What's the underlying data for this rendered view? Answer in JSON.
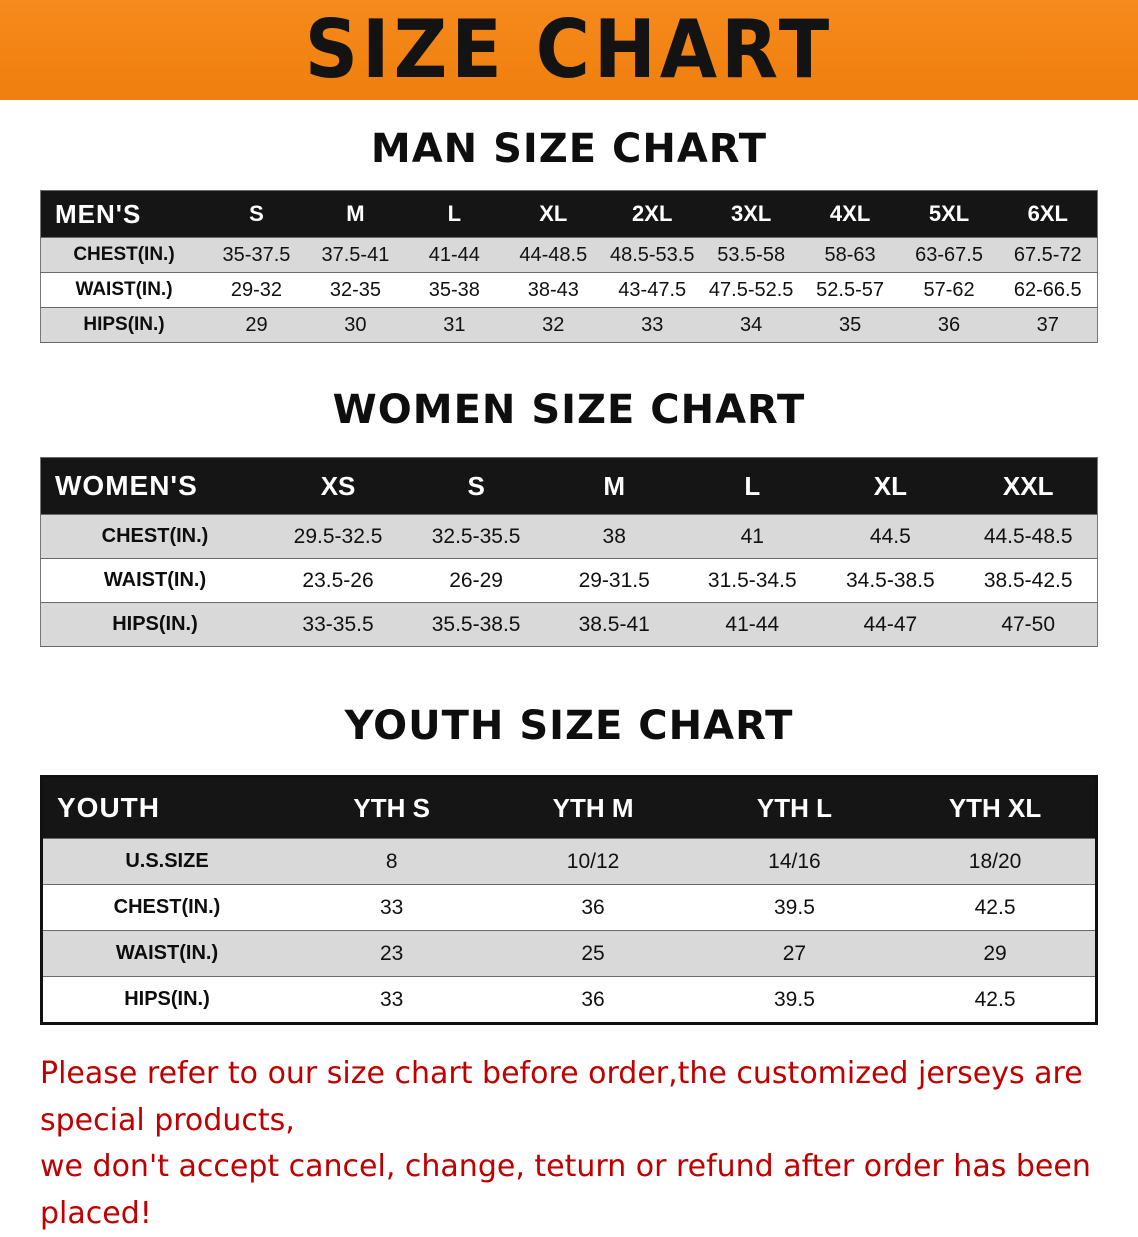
{
  "banner": {
    "title": "SIZE CHART"
  },
  "sections": [
    {
      "title": "MAN SIZE CHART",
      "header": [
        "MEN'S",
        "S",
        "M",
        "L",
        "XL",
        "2XL",
        "3XL",
        "4XL",
        "5XL",
        "6XL"
      ],
      "rows": [
        {
          "label": "CHEST(IN.)",
          "values": [
            "35-37.5",
            "37.5-41",
            "41-44",
            "44-48.5",
            "48.5-53.5",
            "53.5-58",
            "58-63",
            "63-67.5",
            "67.5-72"
          ]
        },
        {
          "label": "WAIST(IN.)",
          "values": [
            "29-32",
            "32-35",
            "35-38",
            "38-43",
            "43-47.5",
            "47.5-52.5",
            "52.5-57",
            "57-62",
            "62-66.5"
          ]
        },
        {
          "label": "HIPS(IN.)",
          "values": [
            "29",
            "30",
            "31",
            "32",
            "33",
            "34",
            "35",
            "36",
            "37"
          ]
        }
      ]
    },
    {
      "title": "WOMEN SIZE CHART",
      "header": [
        "WOMEN'S",
        "XS",
        "S",
        "M",
        "L",
        "XL",
        "XXL"
      ],
      "rows": [
        {
          "label": "CHEST(IN.)",
          "values": [
            "29.5-32.5",
            "32.5-35.5",
            "38",
            "41",
            "44.5",
            "44.5-48.5"
          ]
        },
        {
          "label": "WAIST(IN.)",
          "values": [
            "23.5-26",
            "26-29",
            "29-31.5",
            "31.5-34.5",
            "34.5-38.5",
            "38.5-42.5"
          ]
        },
        {
          "label": "HIPS(IN.)",
          "values": [
            "33-35.5",
            "35.5-38.5",
            "38.5-41",
            "41-44",
            "44-47",
            "47-50"
          ]
        }
      ]
    },
    {
      "title": "YOUTH SIZE CHART",
      "header": [
        "YOUTH",
        "YTH S",
        "YTH M",
        "YTH L",
        "YTH XL"
      ],
      "rows": [
        {
          "label": "U.S.SIZE",
          "values": [
            "8",
            "10/12",
            "14/16",
            "18/20"
          ]
        },
        {
          "label": "CHEST(IN.)",
          "values": [
            "33",
            "36",
            "39.5",
            "42.5"
          ]
        },
        {
          "label": "WAIST(IN.)",
          "values": [
            "23",
            "25",
            "27",
            "29"
          ]
        },
        {
          "label": "HIPS(IN.)",
          "values": [
            "33",
            "36",
            "39.5",
            "42.5"
          ]
        }
      ]
    }
  ],
  "footer": {
    "line1": "Please refer to our size chart before order,the customized jerseys are special products,",
    "line2": "we don't accept cancel, change, teturn or refund after order has been placed!"
  },
  "colors": {
    "banner_bg": "#f1830f",
    "table_header_bg": "#151515",
    "row_alt": "#d9d9d9",
    "footer_text": "#c00000"
  }
}
